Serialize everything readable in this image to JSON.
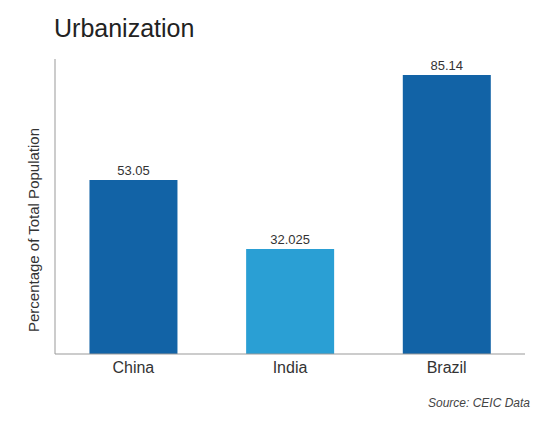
{
  "chart_data": {
    "type": "bar",
    "title": "Urbanization",
    "ylabel": "Percentage of Total Population",
    "source": "Source: CEIC Data",
    "categories": [
      "China",
      "India",
      "Brazil"
    ],
    "values": [
      53.05,
      32.025,
      85.14
    ],
    "colors": [
      "#1263a6",
      "#2a9fd4",
      "#1263a6"
    ],
    "ylim": [
      0,
      90
    ],
    "data_labels": true,
    "tick_labels": "x",
    "grid": false
  }
}
